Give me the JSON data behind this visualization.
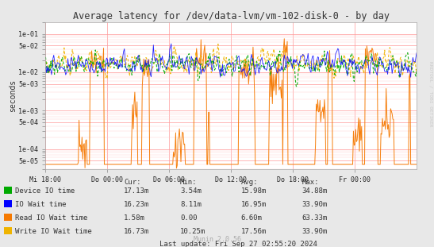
{
  "title": "Average latency for /dev/data-lvm/vm-102-disk-0 - by day",
  "ylabel": "seconds",
  "bg_color": "#e8e8e8",
  "plot_bg_color": "#ffffff",
  "grid_major_color": "#ff9999",
  "grid_minor_color": "#ffcccc",
  "title_color": "#333333",
  "xtick_labels": [
    "Mi 18:00",
    "Do 00:00",
    "Do 06:00",
    "Do 12:00",
    "Do 18:00",
    "Fr 00:00"
  ],
  "ytick_vals": [
    5e-05,
    0.0001,
    0.0005,
    0.001,
    0.005,
    0.01,
    0.05,
    0.1
  ],
  "ytick_lbls": [
    "5e-05",
    "1e-04",
    "5e-04",
    "1e-03",
    "5e-03",
    "1e-02",
    "5e-02",
    "1e-01"
  ],
  "ymin": 3e-05,
  "ymax": 0.2,
  "colors": {
    "device_io": "#00aa00",
    "io_wait": "#0000ff",
    "read_io_wait": "#f57900",
    "write_io_wait": "#efb400"
  },
  "legend_items": [
    {
      "label": "Device IO time",
      "color": "#00aa00"
    },
    {
      "label": "IO Wait time",
      "color": "#0000ff"
    },
    {
      "label": "Read IO Wait time",
      "color": "#f57900"
    },
    {
      "label": "Write IO Wait time",
      "color": "#efb400"
    }
  ],
  "table_headers": [
    "Cur:",
    "Min:",
    "Avg:",
    "Max:"
  ],
  "table_data": [
    [
      "17.13m",
      "3.54m",
      "15.98m",
      "34.88m"
    ],
    [
      "16.23m",
      "8.11m",
      "16.95m",
      "33.90m"
    ],
    [
      "1.58m",
      "0.00",
      "6.60m",
      "63.33m"
    ],
    [
      "16.73m",
      "10.25m",
      "17.56m",
      "33.90m"
    ]
  ],
  "last_update": "Last update: Fri Sep 27 02:55:20 2024",
  "munin_version": "Munin 2.0.56",
  "rrdtool_label": "RRDTOOL / TOBI OETIKER"
}
